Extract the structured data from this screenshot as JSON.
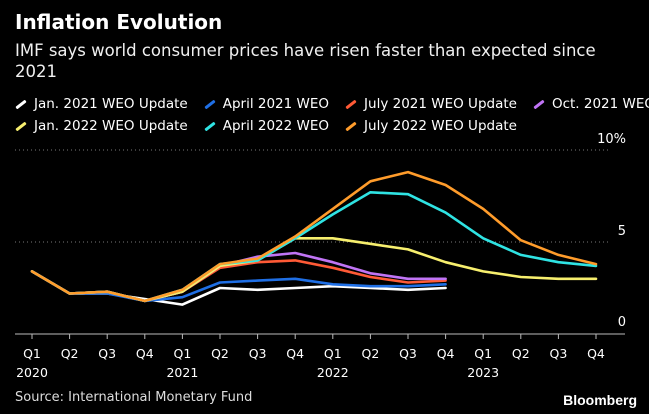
{
  "chart_data": {
    "type": "line",
    "title": "Inflation Evolution",
    "subtitle": "IMF says world consumer prices have risen faster than expected since 2021",
    "source": "Source: International Monetary Fund",
    "brand": "Bloomberg",
    "x": [
      "Q1 2020",
      "Q2 2020",
      "Q3 2020",
      "Q4 2020",
      "Q1 2021",
      "Q2 2021",
      "Q3 2021",
      "Q4 2021",
      "Q1 2022",
      "Q2 2022",
      "Q3 2022",
      "Q4 2022",
      "Q1 2023",
      "Q2 2023",
      "Q3 2023",
      "Q4 2023"
    ],
    "tick_labels": [
      {
        "q": "Q1",
        "year": "2020"
      },
      {
        "q": "Q2",
        "year": ""
      },
      {
        "q": "Q3",
        "year": ""
      },
      {
        "q": "Q4",
        "year": ""
      },
      {
        "q": "Q1",
        "year": "2021"
      },
      {
        "q": "Q2",
        "year": ""
      },
      {
        "q": "Q3",
        "year": ""
      },
      {
        "q": "Q4",
        "year": ""
      },
      {
        "q": "Q1",
        "year": "2022"
      },
      {
        "q": "Q2",
        "year": ""
      },
      {
        "q": "Q3",
        "year": ""
      },
      {
        "q": "Q4",
        "year": ""
      },
      {
        "q": "Q1",
        "year": "2023"
      },
      {
        "q": "Q2",
        "year": ""
      },
      {
        "q": "Q3",
        "year": ""
      },
      {
        "q": "Q4",
        "year": ""
      }
    ],
    "y_ticks": [
      {
        "value": 10,
        "label": "10%"
      },
      {
        "value": 5,
        "label": "5"
      },
      {
        "value": 0,
        "label": "0"
      }
    ],
    "ylim": [
      0,
      10.5
    ],
    "grid": true,
    "series": [
      {
        "name": "Jan. 2021 WEO Update",
        "color": "#ffffff",
        "values": [
          3.4,
          2.2,
          2.2,
          1.9,
          1.6,
          2.5,
          2.4,
          2.5,
          2.6,
          2.5,
          2.4,
          2.5,
          null,
          null,
          null,
          null
        ]
      },
      {
        "name": "April 2021 WEO",
        "color": "#1f6fe5",
        "values": [
          3.4,
          2.2,
          2.2,
          1.8,
          2.0,
          2.8,
          2.9,
          3.0,
          2.7,
          2.6,
          2.6,
          2.7,
          null,
          null,
          null,
          null
        ]
      },
      {
        "name": "July 2021 WEO Update",
        "color": "#ff5a36",
        "values": [
          3.4,
          2.2,
          2.3,
          1.8,
          2.3,
          3.6,
          3.9,
          4.0,
          3.6,
          3.1,
          2.8,
          2.9,
          null,
          null,
          null,
          null
        ]
      },
      {
        "name": "Oct. 2021 WEO",
        "color": "#c074f5",
        "values": [
          3.4,
          2.2,
          2.3,
          1.8,
          2.3,
          3.7,
          4.2,
          4.4,
          3.9,
          3.3,
          3.0,
          3.0,
          null,
          null,
          null,
          null
        ]
      },
      {
        "name": "Jan. 2022 WEO Update",
        "color": "#f7ef6e",
        "values": [
          3.4,
          2.2,
          2.3,
          1.8,
          2.3,
          3.7,
          4.0,
          5.2,
          5.2,
          4.9,
          4.6,
          3.9,
          3.4,
          3.1,
          3.0,
          3.0
        ]
      },
      {
        "name": "April 2022 WEO",
        "color": "#2fe3e3",
        "values": [
          3.4,
          2.2,
          2.3,
          1.8,
          2.4,
          3.8,
          4.0,
          5.2,
          6.5,
          7.7,
          7.6,
          6.6,
          5.2,
          4.3,
          3.9,
          3.7
        ]
      },
      {
        "name": "July 2022 WEO Update",
        "color": "#ff9c2b",
        "values": [
          3.4,
          2.2,
          2.3,
          1.8,
          2.4,
          3.8,
          4.1,
          5.3,
          6.8,
          8.3,
          8.8,
          8.1,
          6.8,
          5.1,
          4.3,
          3.8
        ]
      }
    ]
  }
}
